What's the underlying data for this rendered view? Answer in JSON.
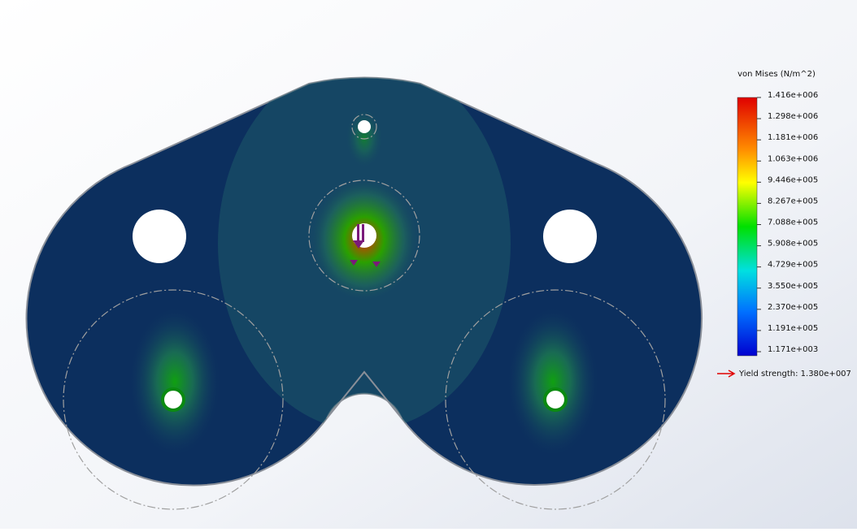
{
  "legend": {
    "title": "von Mises (N/m^2)",
    "labels": [
      "1.416e+006",
      "1.298e+006",
      "1.181e+006",
      "1.063e+006",
      "9.446e+005",
      "8.267e+005",
      "7.088e+005",
      "5.908e+005",
      "4.729e+005",
      "3.550e+005",
      "2.370e+005",
      "1.191e+005",
      "1.171e+003"
    ],
    "yield_strength": "Yield strength: 1.380e+007"
  }
}
